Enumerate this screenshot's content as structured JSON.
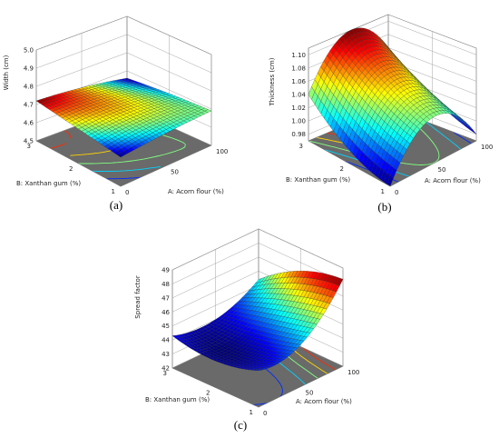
{
  "chart_data": [
    {
      "type": "surface3d",
      "panel_label": "(a)",
      "zlabel": "Width (cm)",
      "xlabel": "A: Acorn flour (%)",
      "ylabel": "B: Xanthan gum (%)",
      "x_ticks": [
        "0",
        "50",
        "100"
      ],
      "y_ticks": [
        "1",
        "2",
        "3"
      ],
      "z_ticks": [
        "4.5",
        "4.6",
        "4.7",
        "4.8",
        "4.9",
        "5.0"
      ],
      "x": [
        0,
        50,
        100
      ],
      "y": [
        1,
        2,
        3
      ],
      "z": [
        [
          4.66,
          4.68,
          4.69
        ],
        [
          4.69,
          4.7,
          4.68
        ],
        [
          4.72,
          4.7,
          4.66
        ]
      ],
      "xlim": [
        0,
        100
      ],
      "ylim": [
        1,
        3
      ],
      "zlim": [
        4.5,
        5.0
      ]
    },
    {
      "type": "surface3d",
      "panel_label": "(b)",
      "zlabel": "Thickness (cm)",
      "xlabel": "A: Acorn flour (%)",
      "ylabel": "B: Xanthan gum (%)",
      "x_ticks": [
        "0",
        "50",
        "100"
      ],
      "y_ticks": [
        "1",
        "2",
        "3"
      ],
      "z_ticks": [
        "0.98",
        "1.00",
        "1.02",
        "1.04",
        "1.06",
        "1.08",
        "1.10"
      ],
      "x": [
        0,
        50,
        100
      ],
      "y": [
        1,
        2,
        3
      ],
      "z": [
        [
          0.97,
          1.04,
          0.98
        ],
        [
          0.99,
          1.07,
          1.01
        ],
        [
          1.04,
          1.11,
          1.06
        ]
      ],
      "xlim": [
        0,
        100
      ],
      "ylim": [
        1,
        3
      ],
      "zlim": [
        0.97,
        1.11
      ]
    },
    {
      "type": "surface3d",
      "panel_label": "(c)",
      "zlabel": "Spread factor",
      "xlabel": "A: Acorn flour (%)",
      "ylabel": "B: Xanthan gum (%)",
      "x_ticks": [
        "0",
        "50",
        "100"
      ],
      "y_ticks": [
        "1",
        "2",
        "3"
      ],
      "z_ticks": [
        "42",
        "43",
        "44",
        "45",
        "46",
        "47",
        "48",
        "49"
      ],
      "x": [
        0,
        50,
        100
      ],
      "y": [
        1,
        2,
        3
      ],
      "z": [
        [
          44.6,
          45.0,
          48.2
        ],
        [
          43.9,
          44.3,
          47.4
        ],
        [
          44.3,
          44.0,
          45.4
        ]
      ],
      "xlim": [
        0,
        100
      ],
      "ylim": [
        1,
        3
      ],
      "zlim": [
        42,
        49
      ]
    }
  ]
}
